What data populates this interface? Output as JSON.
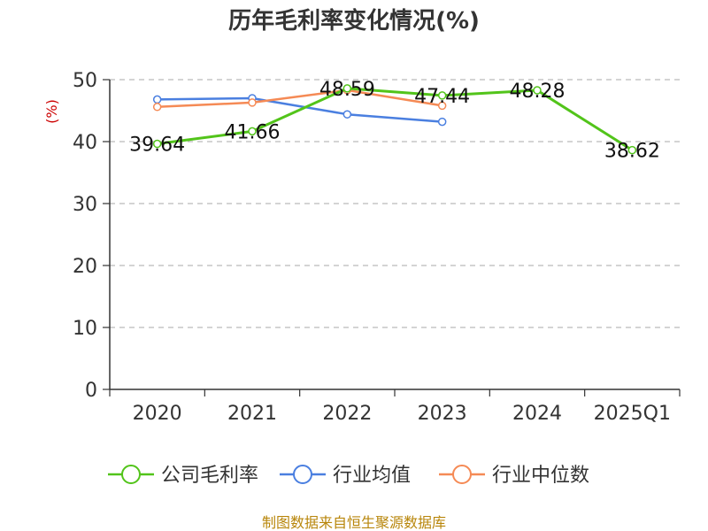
{
  "chart_data": {
    "type": "line",
    "title": "历年毛利率变化情况(%)",
    "ylabel": "(%)",
    "xlabel": "",
    "categories": [
      "2020",
      "2021",
      "2022",
      "2023",
      "2024",
      "2025Q1"
    ],
    "ylim": [
      0,
      50
    ],
    "yticks": [
      0,
      10,
      20,
      30,
      40,
      50
    ],
    "grid": true,
    "legend_position": "bottom",
    "series": [
      {
        "name": "公司毛利率",
        "color": "#52c41a",
        "values": [
          39.64,
          41.66,
          48.59,
          47.44,
          48.28,
          38.62
        ],
        "labels": [
          "39.64",
          "41.66",
          "48.59",
          "47.44",
          "48.28",
          "38.62"
        ]
      },
      {
        "name": "行业均值",
        "color": "#4a7fe0",
        "values": [
          46.8,
          47.0,
          44.4,
          43.2,
          null,
          null
        ],
        "labels": []
      },
      {
        "name": "行业中位数",
        "color": "#f58a55",
        "values": [
          45.6,
          46.3,
          48.3,
          45.8,
          null,
          null
        ],
        "labels": []
      }
    ]
  },
  "footer": {
    "source": "制图数据来自恒生聚源数据库"
  }
}
